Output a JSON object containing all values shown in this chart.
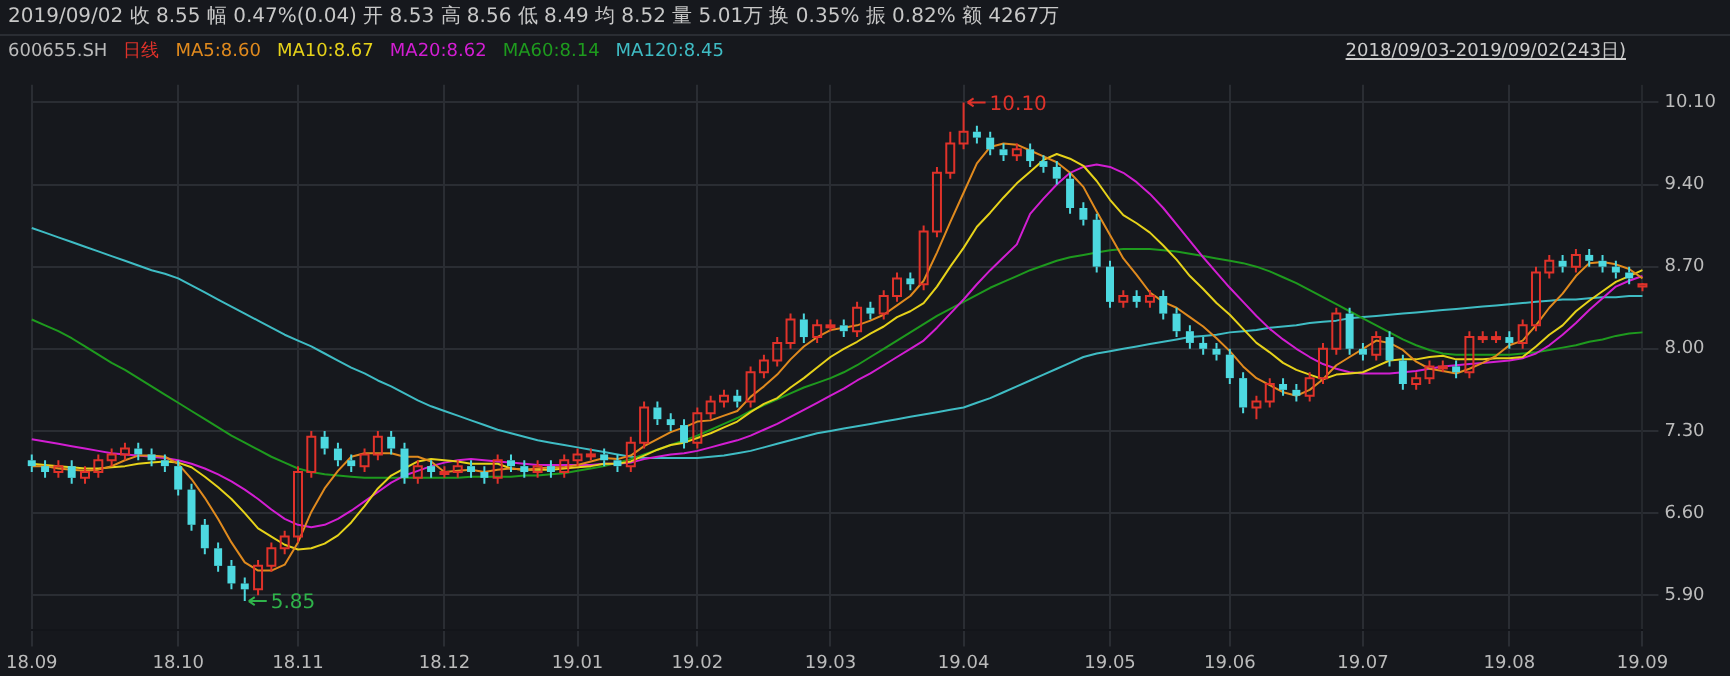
{
  "chart_data": {
    "type": "candlestick",
    "title": "600655.SH",
    "legend_title": "日线",
    "subtitle": "2019/09/02  收 8.55  幅 0.47%(0.04)  开 8.53  高 8.56  低 8.49  均 8.52  量 5.01万  换 0.35%  振 0.82%  额 4267万",
    "annotations": [
      "10.10",
      "5.85",
      "2018/09/03-2019/09/02(243日)"
    ],
    "categories": [
      "18.09",
      null,
      null,
      null,
      null,
      null,
      null,
      null,
      null,
      null,
      null,
      "18.10",
      null,
      null,
      null,
      null,
      null,
      null,
      null,
      null,
      "18.11",
      null,
      null,
      null,
      null,
      null,
      null,
      null,
      null,
      null,
      null,
      "18.12",
      null,
      null,
      null,
      null,
      null,
      null,
      null,
      null,
      null,
      "19.01",
      null,
      null,
      null,
      null,
      null,
      null,
      null,
      null,
      "19.02",
      null,
      null,
      null,
      null,
      null,
      null,
      null,
      null,
      null,
      "19.03",
      null,
      null,
      null,
      null,
      null,
      null,
      null,
      null,
      null,
      "19.04",
      null,
      null,
      null,
      null,
      null,
      null,
      null,
      null,
      null,
      null,
      "19.05",
      null,
      null,
      null,
      null,
      null,
      null,
      null,
      null,
      "19.06",
      null,
      null,
      null,
      null,
      null,
      null,
      null,
      null,
      null,
      "19.07",
      null,
      null,
      null,
      null,
      null,
      null,
      null,
      null,
      null,
      null,
      "19.08",
      null,
      null,
      null,
      null,
      null,
      null,
      null,
      null,
      null,
      "19.09"
    ],
    "ohlc": [
      [
        7.05,
        7.1,
        6.95,
        7.0
      ],
      [
        7.0,
        7.05,
        6.9,
        6.95
      ],
      [
        6.95,
        7.05,
        6.9,
        7.0
      ],
      [
        7.0,
        7.05,
        6.85,
        6.9
      ],
      [
        6.9,
        7.0,
        6.85,
        6.95
      ],
      [
        6.95,
        7.1,
        6.9,
        7.05
      ],
      [
        7.05,
        7.15,
        7.0,
        7.1
      ],
      [
        7.1,
        7.2,
        7.05,
        7.15
      ],
      [
        7.15,
        7.2,
        7.05,
        7.1
      ],
      [
        7.1,
        7.15,
        7.0,
        7.05
      ],
      [
        7.05,
        7.1,
        6.95,
        7.0
      ],
      [
        7.0,
        7.05,
        6.75,
        6.8
      ],
      [
        6.8,
        6.85,
        6.45,
        6.5
      ],
      [
        6.5,
        6.55,
        6.25,
        6.3
      ],
      [
        6.3,
        6.35,
        6.1,
        6.15
      ],
      [
        6.15,
        6.2,
        5.95,
        6.0
      ],
      [
        6.0,
        6.05,
        5.85,
        5.95
      ],
      [
        5.95,
        6.2,
        5.9,
        6.15
      ],
      [
        6.15,
        6.35,
        6.1,
        6.3
      ],
      [
        6.3,
        6.45,
        6.25,
        6.4
      ],
      [
        6.4,
        7.0,
        6.35,
        6.95
      ],
      [
        6.95,
        7.3,
        6.9,
        7.25
      ],
      [
        7.25,
        7.3,
        7.1,
        7.15
      ],
      [
        7.15,
        7.2,
        7.0,
        7.05
      ],
      [
        7.05,
        7.1,
        6.95,
        7.0
      ],
      [
        7.0,
        7.15,
        6.95,
        7.1
      ],
      [
        7.1,
        7.3,
        7.05,
        7.25
      ],
      [
        7.25,
        7.3,
        7.1,
        7.15
      ],
      [
        7.15,
        7.2,
        6.85,
        6.9
      ],
      [
        6.9,
        7.05,
        6.85,
        7.0
      ],
      [
        7.0,
        7.05,
        6.9,
        6.95
      ],
      [
        6.95,
        7.0,
        6.9,
        6.95
      ],
      [
        6.95,
        7.05,
        6.9,
        7.0
      ],
      [
        7.0,
        7.05,
        6.9,
        6.95
      ],
      [
        6.95,
        7.0,
        6.85,
        6.9
      ],
      [
        6.9,
        7.1,
        6.85,
        7.05
      ],
      [
        7.05,
        7.1,
        6.95,
        7.0
      ],
      [
        7.0,
        7.05,
        6.9,
        6.95
      ],
      [
        6.95,
        7.05,
        6.9,
        7.0
      ],
      [
        7.0,
        7.05,
        6.9,
        6.95
      ],
      [
        6.95,
        7.1,
        6.9,
        7.05
      ],
      [
        7.05,
        7.15,
        7.0,
        7.1
      ],
      [
        7.1,
        7.15,
        7.05,
        7.1
      ],
      [
        7.1,
        7.15,
        7.0,
        7.05
      ],
      [
        7.05,
        7.1,
        6.95,
        7.0
      ],
      [
        7.0,
        7.25,
        6.95,
        7.2
      ],
      [
        7.2,
        7.55,
        7.15,
        7.5
      ],
      [
        7.5,
        7.55,
        7.35,
        7.4
      ],
      [
        7.4,
        7.45,
        7.3,
        7.35
      ],
      [
        7.35,
        7.4,
        7.15,
        7.2
      ],
      [
        7.2,
        7.5,
        7.15,
        7.45
      ],
      [
        7.45,
        7.6,
        7.4,
        7.55
      ],
      [
        7.55,
        7.65,
        7.5,
        7.6
      ],
      [
        7.6,
        7.65,
        7.5,
        7.55
      ],
      [
        7.55,
        7.85,
        7.5,
        7.8
      ],
      [
        7.8,
        7.95,
        7.75,
        7.9
      ],
      [
        7.9,
        8.1,
        7.85,
        8.05
      ],
      [
        8.05,
        8.3,
        8.0,
        8.25
      ],
      [
        8.25,
        8.3,
        8.05,
        8.1
      ],
      [
        8.1,
        8.25,
        8.05,
        8.2
      ],
      [
        8.2,
        8.25,
        8.15,
        8.2
      ],
      [
        8.2,
        8.25,
        8.1,
        8.15
      ],
      [
        8.15,
        8.4,
        8.1,
        8.35
      ],
      [
        8.35,
        8.4,
        8.25,
        8.3
      ],
      [
        8.3,
        8.5,
        8.25,
        8.45
      ],
      [
        8.45,
        8.65,
        8.4,
        8.6
      ],
      [
        8.6,
        8.65,
        8.5,
        8.55
      ],
      [
        8.55,
        9.05,
        8.5,
        9.0
      ],
      [
        9.0,
        9.55,
        8.95,
        9.5
      ],
      [
        9.5,
        9.85,
        9.45,
        9.75
      ],
      [
        9.75,
        10.1,
        9.7,
        9.85
      ],
      [
        9.85,
        9.9,
        9.75,
        9.8
      ],
      [
        9.8,
        9.85,
        9.65,
        9.7
      ],
      [
        9.7,
        9.75,
        9.6,
        9.65
      ],
      [
        9.65,
        9.75,
        9.6,
        9.7
      ],
      [
        9.7,
        9.75,
        9.55,
        9.6
      ],
      [
        9.6,
        9.65,
        9.5,
        9.55
      ],
      [
        9.55,
        9.6,
        9.4,
        9.45
      ],
      [
        9.45,
        9.5,
        9.15,
        9.2
      ],
      [
        9.2,
        9.25,
        9.05,
        9.1
      ],
      [
        9.1,
        9.15,
        8.65,
        8.7
      ],
      [
        8.7,
        8.75,
        8.35,
        8.4
      ],
      [
        8.4,
        8.5,
        8.35,
        8.45
      ],
      [
        8.45,
        8.5,
        8.35,
        8.4
      ],
      [
        8.4,
        8.5,
        8.35,
        8.45
      ],
      [
        8.45,
        8.5,
        8.25,
        8.3
      ],
      [
        8.3,
        8.35,
        8.1,
        8.15
      ],
      [
        8.15,
        8.2,
        8.0,
        8.05
      ],
      [
        8.05,
        8.1,
        7.95,
        8.0
      ],
      [
        8.0,
        8.05,
        7.9,
        7.95
      ],
      [
        7.95,
        8.0,
        7.7,
        7.75
      ],
      [
        7.75,
        7.8,
        7.45,
        7.5
      ],
      [
        7.5,
        7.6,
        7.4,
        7.55
      ],
      [
        7.55,
        7.75,
        7.5,
        7.7
      ],
      [
        7.7,
        7.75,
        7.6,
        7.65
      ],
      [
        7.65,
        7.7,
        7.55,
        7.6
      ],
      [
        7.6,
        7.8,
        7.55,
        7.75
      ],
      [
        7.75,
        8.05,
        7.7,
        8.0
      ],
      [
        8.0,
        8.35,
        7.95,
        8.3
      ],
      [
        8.3,
        8.35,
        7.95,
        8.0
      ],
      [
        8.0,
        8.05,
        7.9,
        7.95
      ],
      [
        7.95,
        8.15,
        7.9,
        8.1
      ],
      [
        8.1,
        8.15,
        7.85,
        7.9
      ],
      [
        7.9,
        7.95,
        7.65,
        7.7
      ],
      [
        7.7,
        7.8,
        7.65,
        7.75
      ],
      [
        7.75,
        7.9,
        7.7,
        7.85
      ],
      [
        7.85,
        7.9,
        7.8,
        7.85
      ],
      [
        7.85,
        7.9,
        7.75,
        7.8
      ],
      [
        7.8,
        8.15,
        7.75,
        8.1
      ],
      [
        8.1,
        8.15,
        8.05,
        8.1
      ],
      [
        8.1,
        8.15,
        8.05,
        8.1
      ],
      [
        8.1,
        8.15,
        8.0,
        8.05
      ],
      [
        8.05,
        8.25,
        8.0,
        8.2
      ],
      [
        8.2,
        8.7,
        8.15,
        8.65
      ],
      [
        8.65,
        8.8,
        8.6,
        8.75
      ],
      [
        8.75,
        8.8,
        8.65,
        8.7
      ],
      [
        8.7,
        8.85,
        8.65,
        8.8
      ],
      [
        8.8,
        8.85,
        8.7,
        8.75
      ],
      [
        8.75,
        8.8,
        8.65,
        8.7
      ],
      [
        8.7,
        8.75,
        8.6,
        8.65
      ],
      [
        8.65,
        8.7,
        8.55,
        8.6
      ],
      [
        8.53,
        8.56,
        8.49,
        8.55
      ]
    ],
    "colors": [
      "#4dd9e0",
      "#4dd9e0",
      "#e0322a",
      "#4dd9e0",
      "#e0322a",
      "#e0322a",
      "#e0322a",
      "#e0322a",
      "#4dd9e0",
      "#4dd9e0",
      "#4dd9e0",
      "#4dd9e0",
      "#4dd9e0",
      "#4dd9e0",
      "#4dd9e0",
      "#4dd9e0",
      "#4dd9e0",
      "#e0322a",
      "#e0322a",
      "#e0322a",
      "#e0322a",
      "#e0322a",
      "#4dd9e0",
      "#4dd9e0",
      "#4dd9e0",
      "#e0322a",
      "#e0322a",
      "#4dd9e0",
      "#4dd9e0",
      "#e0322a",
      "#4dd9e0",
      "#e0322a",
      "#e0322a",
      "#4dd9e0",
      "#4dd9e0",
      "#e0322a",
      "#4dd9e0",
      "#4dd9e0",
      "#e0322a",
      "#4dd9e0",
      "#e0322a",
      "#e0322a",
      "#e0322a",
      "#4dd9e0",
      "#4dd9e0",
      "#e0322a",
      "#e0322a",
      "#4dd9e0",
      "#4dd9e0",
      "#4dd9e0",
      "#e0322a",
      "#e0322a",
      "#e0322a",
      "#4dd9e0",
      "#e0322a",
      "#e0322a",
      "#e0322a",
      "#e0322a",
      "#4dd9e0",
      "#e0322a",
      "#e0322a",
      "#4dd9e0",
      "#e0322a",
      "#4dd9e0",
      "#e0322a",
      "#e0322a",
      "#4dd9e0",
      "#e0322a",
      "#e0322a",
      "#e0322a",
      "#e0322a",
      "#4dd9e0",
      "#4dd9e0",
      "#4dd9e0",
      "#e0322a",
      "#4dd9e0",
      "#4dd9e0",
      "#4dd9e0",
      "#4dd9e0",
      "#4dd9e0",
      "#4dd9e0",
      "#4dd9e0",
      "#e0322a",
      "#4dd9e0",
      "#e0322a",
      "#4dd9e0",
      "#4dd9e0",
      "#4dd9e0",
      "#4dd9e0",
      "#4dd9e0",
      "#4dd9e0",
      "#4dd9e0",
      "#e0322a",
      "#e0322a",
      "#4dd9e0",
      "#4dd9e0",
      "#e0322a",
      "#e0322a",
      "#e0322a",
      "#4dd9e0",
      "#4dd9e0",
      "#e0322a",
      "#4dd9e0",
      "#4dd9e0",
      "#e0322a",
      "#e0322a",
      "#e0322a",
      "#4dd9e0",
      "#e0322a",
      "#e0322a",
      "#e0322a",
      "#4dd9e0",
      "#e0322a",
      "#e0322a",
      "#e0322a",
      "#4dd9e0",
      "#e0322a",
      "#4dd9e0",
      "#4dd9e0",
      "#4dd9e0",
      "#4dd9e0",
      "#e0322a"
    ],
    "series": [
      {
        "type": "line",
        "name": "MA5:8.60",
        "color": "#e08a1e",
        "values": [
          7.0,
          7.0,
          6.98,
          6.97,
          6.96,
          6.97,
          7.0,
          7.05,
          7.09,
          7.09,
          7.08,
          7.02,
          6.89,
          6.73,
          6.55,
          6.35,
          6.18,
          6.11,
          6.11,
          6.16,
          6.35,
          6.61,
          6.81,
          6.96,
          7.08,
          7.11,
          7.11,
          7.11,
          7.08,
          7.08,
          7.04,
          6.95,
          6.96,
          6.97,
          6.95,
          6.97,
          6.98,
          6.97,
          6.98,
          6.99,
          6.99,
          7.01,
          7.04,
          7.07,
          7.06,
          7.09,
          7.17,
          7.23,
          7.29,
          7.33,
          7.38,
          7.39,
          7.43,
          7.47,
          7.59,
          7.68,
          7.78,
          7.91,
          8.02,
          8.1,
          8.16,
          8.18,
          8.2,
          8.24,
          8.29,
          8.37,
          8.45,
          8.58,
          8.82,
          9.08,
          9.33,
          9.58,
          9.72,
          9.75,
          9.74,
          9.69,
          9.64,
          9.59,
          9.5,
          9.38,
          9.17,
          8.97,
          8.77,
          8.63,
          8.48,
          8.4,
          8.35,
          8.27,
          8.19,
          8.09,
          7.98,
          7.85,
          7.75,
          7.69,
          7.63,
          7.6,
          7.65,
          7.74,
          7.86,
          7.93,
          8.0,
          8.07,
          8.05,
          7.99,
          7.89,
          7.83,
          7.81,
          7.79,
          7.83,
          7.88,
          7.94,
          8.03,
          8.07,
          8.2,
          8.35,
          8.47,
          8.62,
          8.73,
          8.74,
          8.72,
          8.68,
          8.6
        ]
      },
      {
        "type": "line",
        "name": "MA10:8.67",
        "color": "#e6d21a",
        "values": [
          7.02,
          7.01,
          7.0,
          6.99,
          6.98,
          6.98,
          6.99,
          7.0,
          7.02,
          7.03,
          7.04,
          7.03,
          6.99,
          6.91,
          6.82,
          6.72,
          6.6,
          6.47,
          6.4,
          6.33,
          6.29,
          6.3,
          6.34,
          6.41,
          6.52,
          6.66,
          6.81,
          6.92,
          6.98,
          7.04,
          7.06,
          7.05,
          7.04,
          7.02,
          7.02,
          7.02,
          6.98,
          6.97,
          6.97,
          6.97,
          6.98,
          6.99,
          7.0,
          7.02,
          7.02,
          7.04,
          7.09,
          7.14,
          7.18,
          7.2,
          7.24,
          7.28,
          7.33,
          7.38,
          7.46,
          7.53,
          7.58,
          7.67,
          7.75,
          7.84,
          7.93,
          8.0,
          8.06,
          8.13,
          8.19,
          8.27,
          8.32,
          8.39,
          8.53,
          8.7,
          8.86,
          9.04,
          9.16,
          9.29,
          9.41,
          9.51,
          9.61,
          9.66,
          9.62,
          9.56,
          9.43,
          9.27,
          9.14,
          9.07,
          8.99,
          8.88,
          8.76,
          8.62,
          8.51,
          8.39,
          8.29,
          8.17,
          8.05,
          7.97,
          7.88,
          7.82,
          7.78,
          7.74,
          7.78,
          7.79,
          7.8,
          7.85,
          7.9,
          7.91,
          7.91,
          7.93,
          7.94,
          7.91,
          7.91,
          7.91,
          7.92,
          7.92,
          7.93,
          8.02,
          8.12,
          8.2,
          8.32,
          8.41,
          8.49,
          8.57,
          8.62,
          8.67
        ]
      },
      {
        "type": "line",
        "name": "MA20:8.62",
        "color": "#d21ed2",
        "values": [
          7.23,
          7.21,
          7.19,
          7.17,
          7.15,
          7.13,
          7.11,
          7.1,
          7.09,
          7.08,
          7.07,
          7.05,
          7.02,
          6.98,
          6.93,
          6.87,
          6.8,
          6.72,
          6.63,
          6.55,
          6.5,
          6.48,
          6.5,
          6.55,
          6.62,
          6.7,
          6.78,
          6.86,
          6.92,
          6.96,
          7.0,
          7.03,
          7.05,
          7.06,
          7.05,
          7.04,
          7.03,
          7.02,
          7.01,
          7.01,
          7.01,
          7.01,
          7.01,
          7.02,
          7.02,
          7.03,
          7.06,
          7.08,
          7.1,
          7.11,
          7.13,
          7.16,
          7.19,
          7.22,
          7.26,
          7.31,
          7.36,
          7.42,
          7.48,
          7.54,
          7.6,
          7.66,
          7.73,
          7.79,
          7.86,
          7.93,
          8.0,
          8.07,
          8.18,
          8.3,
          8.42,
          8.55,
          8.67,
          8.78,
          8.89,
          9.15,
          9.28,
          9.4,
          9.5,
          9.55,
          9.57,
          9.55,
          9.5,
          9.42,
          9.32,
          9.2,
          9.06,
          8.92,
          8.78,
          8.65,
          8.52,
          8.4,
          8.28,
          8.17,
          8.08,
          8.0,
          7.93,
          7.87,
          7.83,
          7.8,
          7.79,
          7.79,
          7.79,
          7.8,
          7.81,
          7.83,
          7.85,
          7.86,
          7.87,
          7.88,
          7.89,
          7.9,
          7.92,
          7.96,
          8.03,
          8.12,
          8.22,
          8.33,
          8.43,
          8.53,
          8.58,
          8.62
        ]
      },
      {
        "type": "line",
        "name": "MA60:8.14",
        "color": "#1e9a1e",
        "values": [
          8.25,
          8.2,
          8.15,
          8.09,
          8.02,
          7.95,
          7.88,
          7.82,
          7.75,
          7.68,
          7.61,
          7.54,
          7.47,
          7.4,
          7.33,
          7.26,
          7.2,
          7.14,
          7.08,
          7.03,
          6.98,
          6.95,
          6.93,
          6.92,
          6.91,
          6.9,
          6.9,
          6.9,
          6.9,
          6.9,
          6.9,
          6.9,
          6.9,
          6.91,
          6.91,
          6.91,
          6.91,
          6.92,
          6.92,
          6.93,
          6.94,
          6.96,
          6.98,
          7.0,
          7.03,
          7.06,
          7.1,
          7.14,
          7.18,
          7.22,
          7.26,
          7.31,
          7.36,
          7.41,
          7.47,
          7.52,
          7.57,
          7.62,
          7.67,
          7.71,
          7.75,
          7.8,
          7.86,
          7.93,
          8.0,
          8.07,
          8.14,
          8.21,
          8.28,
          8.34,
          8.4,
          8.46,
          8.52,
          8.57,
          8.62,
          8.67,
          8.71,
          8.75,
          8.78,
          8.8,
          8.82,
          8.84,
          8.85,
          8.85,
          8.85,
          8.84,
          8.83,
          8.81,
          8.79,
          8.77,
          8.75,
          8.73,
          8.7,
          8.66,
          8.61,
          8.56,
          8.5,
          8.44,
          8.38,
          8.32,
          8.26,
          8.2,
          8.14,
          8.08,
          8.03,
          7.99,
          7.96,
          7.95,
          7.95,
          7.95,
          7.95,
          7.95,
          7.96,
          7.97,
          7.99,
          8.01,
          8.03,
          8.06,
          8.08,
          8.11,
          8.13,
          8.14
        ]
      },
      {
        "type": "line",
        "name": "MA120:8.45",
        "color": "#3fbcc4",
        "values": [
          9.03,
          8.99,
          8.95,
          8.91,
          8.87,
          8.83,
          8.79,
          8.75,
          8.71,
          8.67,
          8.64,
          8.6,
          8.54,
          8.48,
          8.42,
          8.36,
          8.3,
          8.24,
          8.18,
          8.12,
          8.07,
          8.02,
          7.96,
          7.9,
          7.84,
          7.79,
          7.73,
          7.68,
          7.62,
          7.56,
          7.51,
          7.47,
          7.43,
          7.39,
          7.35,
          7.31,
          7.28,
          7.25,
          7.22,
          7.2,
          7.18,
          7.16,
          7.14,
          7.12,
          7.1,
          7.08,
          7.07,
          7.07,
          7.07,
          7.07,
          7.07,
          7.08,
          7.09,
          7.11,
          7.13,
          7.16,
          7.19,
          7.22,
          7.25,
          7.28,
          7.3,
          7.32,
          7.34,
          7.36,
          7.38,
          7.4,
          7.42,
          7.44,
          7.46,
          7.48,
          7.5,
          7.54,
          7.58,
          7.63,
          7.68,
          7.73,
          7.78,
          7.83,
          7.88,
          7.93,
          7.96,
          7.98,
          8.0,
          8.02,
          8.04,
          8.06,
          8.08,
          8.1,
          8.11,
          8.12,
          8.14,
          8.15,
          8.16,
          8.18,
          8.19,
          8.2,
          8.22,
          8.23,
          8.24,
          8.26,
          8.27,
          8.28,
          8.29,
          8.3,
          8.31,
          8.32,
          8.33,
          8.34,
          8.35,
          8.36,
          8.37,
          8.38,
          8.39,
          8.4,
          8.41,
          8.42,
          8.42,
          8.43,
          8.44,
          8.44,
          8.45,
          8.45
        ]
      }
    ],
    "ylim": [
      5.6,
      10.25
    ],
    "yticks": [
      {
        "value": 5.9,
        "label": "5.90"
      },
      {
        "value": 6.6,
        "label": "6.60"
      },
      {
        "value": 7.3,
        "label": "7.30"
      },
      {
        "value": 8.0,
        "label": "8.00"
      },
      {
        "value": 8.7,
        "label": "8.70"
      },
      {
        "value": 9.4,
        "label": "9.40"
      },
      {
        "value": 10.1,
        "label": "10.10"
      }
    ],
    "grid": true,
    "legend": "top left"
  }
}
